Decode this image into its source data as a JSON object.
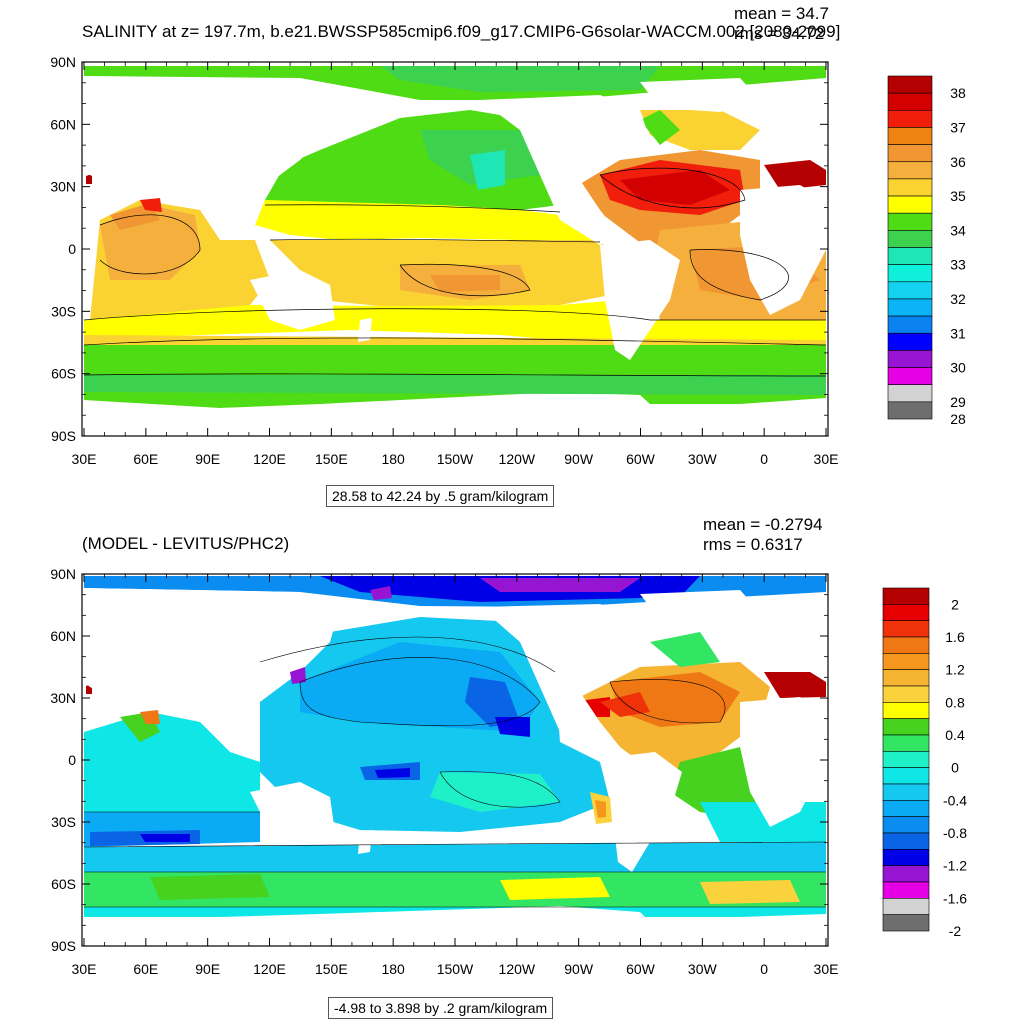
{
  "top": {
    "title": "SALINITY at z= 197.7m, b.e21.BWSSP585cmip6.f09_g17.CMIP6-G6solar-WACCM.002 [2080-2099]",
    "mean_label": "mean = 34.7",
    "rms_label": "rms = 34.72",
    "subtitle": "28.58 to 42.24 by .5 gram/kilogram",
    "colorbar": {
      "colors": [
        "#b40000",
        "#d20000",
        "#f01e0a",
        "#f08214",
        "#f09632",
        "#f5af3c",
        "#fad232",
        "#ffff00",
        "#50dc14",
        "#3cd250",
        "#1ee6b4",
        "#0ff0dc",
        "#14d2f0",
        "#0ab4f5",
        "#0a82f0",
        "#0000ff",
        "#9614d2",
        "#e600e6",
        "#d2d2d2",
        "#6e6e6e"
      ],
      "labels": [
        "38",
        "37",
        "36",
        "35",
        "34",
        "33",
        "32",
        "31",
        "30",
        "29",
        "28"
      ]
    }
  },
  "bottom": {
    "title": "(MODEL - LEVITUS/PHC2)",
    "mean_label": "mean = -0.2794",
    "rms_label": "rms = 0.6317",
    "subtitle": "-4.98 to 3.898 by .2 gram/kilogram",
    "colorbar": {
      "colors": [
        "#b40000",
        "#e60000",
        "#f0320a",
        "#f07814",
        "#f5961e",
        "#f5b432",
        "#fad23c",
        "#ffff00",
        "#46d21e",
        "#32e664",
        "#1ef0c8",
        "#0fe6e6",
        "#14c8f0",
        "#0aaaf5",
        "#0a8cf0",
        "#0a64e6",
        "#0000e6",
        "#9614d2",
        "#e600e6",
        "#d2d2d2",
        "#6e6e6e"
      ],
      "labels": [
        "2",
        "1.6",
        "1.2",
        "0.8",
        "0.4",
        "0",
        "-0.4",
        "-0.8",
        "-1.2",
        "-1.6",
        "-2"
      ]
    }
  },
  "axes": {
    "lat_labels": [
      "90N",
      "60N",
      "30N",
      "0",
      "30S",
      "60S",
      "90S"
    ],
    "lon_labels": [
      "30E",
      "60E",
      "90E",
      "120E",
      "150E",
      "180",
      "150W",
      "120W",
      "90W",
      "60W",
      "30W",
      "0",
      "30E"
    ]
  }
}
